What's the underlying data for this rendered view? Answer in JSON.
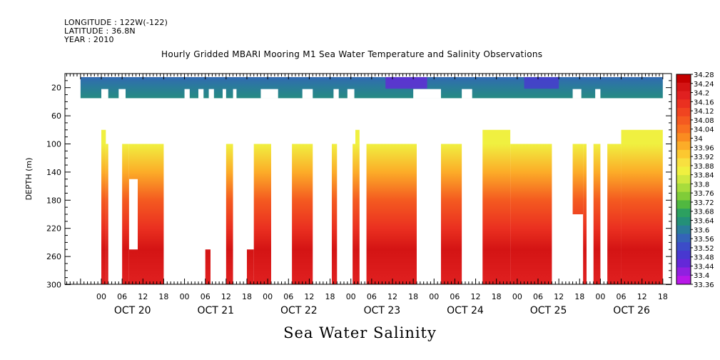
{
  "header": {
    "longitude": "LONGITUDE : 122W(-122)",
    "latitude": "LATITUDE : 36.8N",
    "year": "YEAR : 2010",
    "title": "Hourly Gridded MBARI Mooring M1 Sea Water Temperature and Salinity Observations"
  },
  "footer": {
    "title": "Sea Water Salinity"
  },
  "chart_data": {
    "type": "heatmap",
    "title": "Hourly Gridded MBARI Mooring M1 Sea Water Temperature and Salinity Observations",
    "xlabel": "",
    "ylabel": "DEPTH (m)",
    "x_unit": "hours since OCT 19 2010 18:00",
    "xlim": [
      0,
      168
    ],
    "ylim": [
      0,
      300
    ],
    "y_reversed": true,
    "y_ticks": [
      20,
      60,
      100,
      140,
      180,
      220,
      260,
      300
    ],
    "x_tick_labels": [
      "00",
      "06",
      "12",
      "18",
      "00",
      "06",
      "12",
      "18",
      "00",
      "06",
      "12",
      "18",
      "00",
      "06",
      "12",
      "18",
      "00",
      "06",
      "12",
      "18",
      "00",
      "06",
      "12",
      "18",
      "00",
      "06",
      "12",
      "18"
    ],
    "day_labels": [
      "OCT 20",
      "OCT 21",
      "OCT 22",
      "OCT 23",
      "OCT 24",
      "OCT 25",
      "OCT 26"
    ],
    "colorbar": {
      "ticks": [
        "34.28",
        "34.24",
        "34.2",
        "34.16",
        "34.12",
        "34.08",
        "34.04",
        "34",
        "33.96",
        "33.92",
        "33.88",
        "33.84",
        "33.8",
        "33.76",
        "33.72",
        "33.68",
        "33.64",
        "33.6",
        "33.56",
        "33.52",
        "33.48",
        "33.44",
        "33.4",
        "33.36"
      ],
      "colors": [
        "#c40000",
        "#d41414",
        "#e02020",
        "#ea3020",
        "#f04420",
        "#f45a20",
        "#f87020",
        "#fa8c20",
        "#fcac28",
        "#fcc830",
        "#f8e040",
        "#f0f040",
        "#d0e840",
        "#a8dc3c",
        "#80cc38",
        "#50b840",
        "#2ca060",
        "#249078",
        "#2a7c9a",
        "#3464b8",
        "#3c4cc8",
        "#4838d0",
        "#6428d8",
        "#9020e0",
        "#b818e8"
      ]
    },
    "upper_band": {
      "depth_range": [
        5,
        35
      ],
      "typical_value": 33.58,
      "low_value_events": [
        {
          "x_range": [
            88,
            100
          ],
          "value": 33.44
        },
        {
          "x_range": [
            128,
            138
          ],
          "value": 33.48
        }
      ],
      "gaps": [
        {
          "x_range": [
            6,
            8
          ],
          "depth_range": [
            22,
            35
          ]
        },
        {
          "x_range": [
            11,
            13
          ],
          "depth_range": [
            22,
            35
          ]
        },
        {
          "x_range": [
            30,
            31.5
          ],
          "depth_range": [
            22,
            35
          ]
        },
        {
          "x_range": [
            34,
            35.5
          ],
          "depth_range": [
            22,
            35
          ]
        },
        {
          "x_range": [
            37,
            38.5
          ],
          "depth_range": [
            22,
            35
          ]
        },
        {
          "x_range": [
            41,
            42
          ],
          "depth_range": [
            22,
            35
          ]
        },
        {
          "x_range": [
            44,
            45
          ],
          "depth_range": [
            22,
            35
          ]
        },
        {
          "x_range": [
            52,
            57
          ],
          "depth_range": [
            22,
            35
          ]
        },
        {
          "x_range": [
            64,
            67
          ],
          "depth_range": [
            22,
            35
          ]
        },
        {
          "x_range": [
            73,
            74.5
          ],
          "depth_range": [
            22,
            35
          ]
        },
        {
          "x_range": [
            77,
            79
          ],
          "depth_range": [
            22,
            35
          ]
        },
        {
          "x_range": [
            96,
            104
          ],
          "depth_range": [
            22,
            35
          ]
        },
        {
          "x_range": [
            110,
            113
          ],
          "depth_range": [
            22,
            35
          ]
        },
        {
          "x_range": [
            142,
            144.5
          ],
          "depth_range": [
            22,
            35
          ]
        },
        {
          "x_range": [
            148.5,
            150
          ],
          "depth_range": [
            22,
            35
          ]
        }
      ]
    },
    "lower_band": {
      "value_by_depth": [
        {
          "depth": 100,
          "value": 33.84
        },
        {
          "depth": 140,
          "value": 33.98
        },
        {
          "depth": 180,
          "value": 34.08
        },
        {
          "depth": 220,
          "value": 34.14
        },
        {
          "depth": 250,
          "value": 34.24
        },
        {
          "depth": 300,
          "value": 34.18
        }
      ],
      "columns": [
        {
          "x_range": [
            6,
            7.3
          ],
          "depth_range": [
            80,
            300
          ]
        },
        {
          "x_range": [
            7.3,
            8
          ],
          "depth_range": [
            100,
            300
          ]
        },
        {
          "x_range": [
            12,
            14
          ],
          "depth_range": [
            100,
            300
          ]
        },
        {
          "x_range": [
            14,
            16.5
          ],
          "depth_range": [
            100,
            150
          ]
        },
        {
          "x_range": [
            14,
            16.5
          ],
          "depth_range": [
            250,
            300
          ]
        },
        {
          "x_range": [
            16.5,
            24
          ],
          "depth_range": [
            100,
            300
          ]
        },
        {
          "x_range": [
            36,
            37.5
          ],
          "depth_range": [
            250,
            300
          ]
        },
        {
          "x_range": [
            42,
            44
          ],
          "depth_range": [
            100,
            300
          ]
        },
        {
          "x_range": [
            48,
            50
          ],
          "depth_range": [
            250,
            300
          ]
        },
        {
          "x_range": [
            50,
            55
          ],
          "depth_range": [
            100,
            300
          ]
        },
        {
          "x_range": [
            61,
            67
          ],
          "depth_range": [
            100,
            300
          ]
        },
        {
          "x_range": [
            72.5,
            74
          ],
          "depth_range": [
            100,
            300
          ]
        },
        {
          "x_range": [
            78.5,
            79.3
          ],
          "depth_range": [
            100,
            300
          ]
        },
        {
          "x_range": [
            79.3,
            80.5
          ],
          "depth_range": [
            80,
            300
          ]
        },
        {
          "x_range": [
            82.5,
            97
          ],
          "depth_range": [
            100,
            300
          ]
        },
        {
          "x_range": [
            104,
            110
          ],
          "depth_range": [
            100,
            300
          ]
        },
        {
          "x_range": [
            116,
            124
          ],
          "depth_range": [
            80,
            300
          ]
        },
        {
          "x_range": [
            124,
            136
          ],
          "depth_range": [
            100,
            300
          ]
        },
        {
          "x_range": [
            142,
            145
          ],
          "depth_range": [
            100,
            200
          ]
        },
        {
          "x_range": [
            145,
            146
          ],
          "depth_range": [
            100,
            300
          ]
        },
        {
          "x_range": [
            148,
            150
          ],
          "depth_range": [
            100,
            300
          ]
        },
        {
          "x_range": [
            152,
            156
          ],
          "depth_range": [
            100,
            300
          ]
        },
        {
          "x_range": [
            156,
            168
          ],
          "depth_range": [
            80,
            300
          ]
        }
      ]
    }
  }
}
